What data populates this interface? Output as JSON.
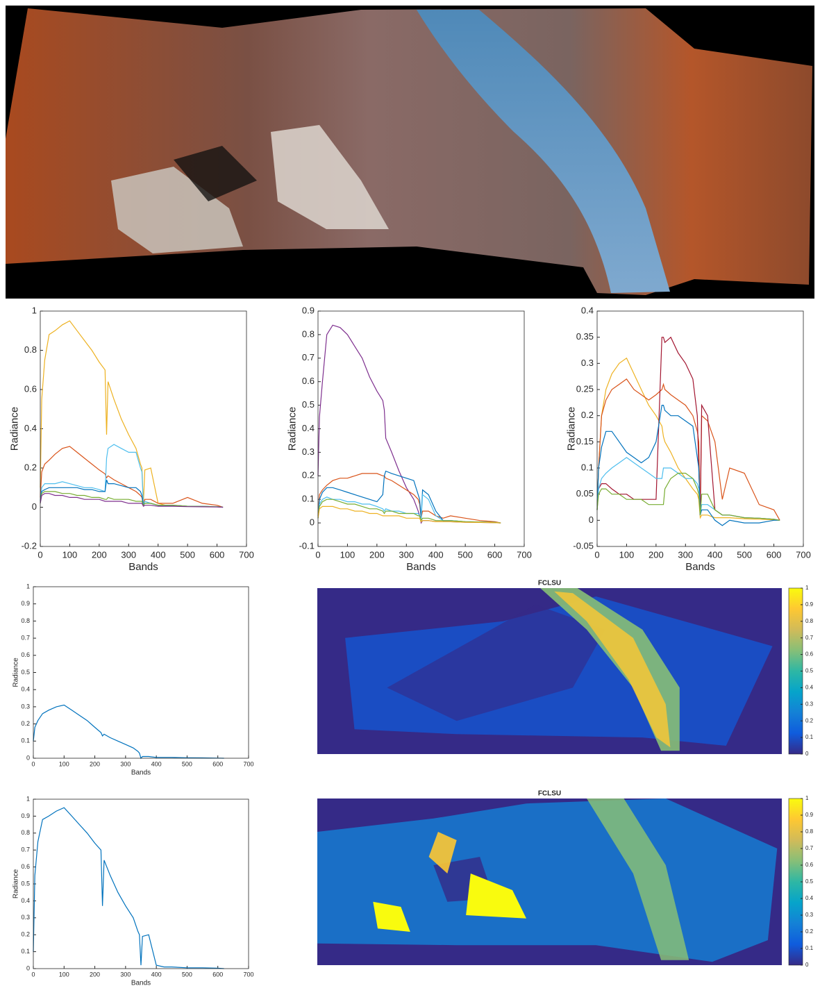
{
  "chart_data": [
    {
      "type": "line",
      "ylabel": "Radiance",
      "xlabel": "Bands",
      "xlim": [
        0,
        700
      ],
      "xticks": [
        0,
        100,
        200,
        300,
        400,
        500,
        600,
        700
      ],
      "ylim": [
        -0.2,
        1
      ],
      "yticks": [
        -0.2,
        0,
        0.2,
        0.4,
        0.6,
        0.8,
        1
      ],
      "x": [
        0,
        5,
        15,
        30,
        50,
        75,
        100,
        125,
        150,
        175,
        200,
        220,
        225,
        230,
        250,
        275,
        300,
        325,
        340,
        345,
        350,
        355,
        375,
        400,
        425,
        450,
        500,
        550,
        600,
        620
      ],
      "series": [
        {
          "color": "#EDB120",
          "values": [
            0.1,
            0.55,
            0.75,
            0.88,
            0.9,
            0.93,
            0.95,
            0.9,
            0.85,
            0.8,
            0.74,
            0.7,
            0.37,
            0.64,
            0.55,
            0.45,
            0.37,
            0.3,
            0.22,
            0.2,
            0.02,
            0.19,
            0.2,
            0.02,
            0.01,
            0.01,
            0.005,
            0.005,
            0.003,
            0
          ]
        },
        {
          "color": "#D95319",
          "values": [
            0.05,
            0.18,
            0.22,
            0.24,
            0.27,
            0.3,
            0.31,
            0.28,
            0.25,
            0.22,
            0.19,
            0.17,
            0.15,
            0.16,
            0.14,
            0.12,
            0.1,
            0.08,
            0.06,
            0.05,
            0.01,
            0.04,
            0.04,
            0.02,
            0.02,
            0.02,
            0.05,
            0.02,
            0.01,
            0
          ]
        },
        {
          "color": "#4DBEEE",
          "values": [
            0.03,
            0.1,
            0.12,
            0.12,
            0.12,
            0.13,
            0.12,
            0.11,
            0.1,
            0.1,
            0.09,
            0.08,
            0.25,
            0.3,
            0.32,
            0.3,
            0.28,
            0.28,
            0.2,
            0.18,
            0.01,
            0.03,
            0.02,
            0.01,
            0.01,
            0.01,
            0.005,
            0.005,
            0.003,
            0
          ]
        },
        {
          "color": "#0072BD",
          "values": [
            0.03,
            0.08,
            0.09,
            0.1,
            0.1,
            0.1,
            0.1,
            0.1,
            0.09,
            0.09,
            0.08,
            0.08,
            0.14,
            0.12,
            0.12,
            0.11,
            0.1,
            0.1,
            0.08,
            0.06,
            0.01,
            0.02,
            0.02,
            0.01,
            0.01,
            0.01,
            0.005,
            0.004,
            0.002,
            0
          ]
        },
        {
          "color": "#77AC30",
          "values": [
            0.02,
            0.07,
            0.08,
            0.08,
            0.08,
            0.07,
            0.07,
            0.06,
            0.06,
            0.05,
            0.05,
            0.04,
            0.04,
            0.05,
            0.04,
            0.04,
            0.04,
            0.03,
            0.03,
            0.03,
            0.01,
            0.02,
            0.02,
            0.01,
            0.01,
            0.01,
            0.005,
            0.004,
            0.002,
            0
          ]
        },
        {
          "color": "#7E2F8E",
          "values": [
            0.02,
            0.06,
            0.07,
            0.07,
            0.06,
            0.06,
            0.05,
            0.05,
            0.04,
            0.04,
            0.04,
            0.03,
            0.03,
            0.03,
            0.03,
            0.03,
            0.02,
            0.02,
            0.02,
            0.02,
            0.005,
            0.01,
            0.01,
            0.005,
            0.005,
            0.005,
            0.003,
            0.002,
            0.001,
            0
          ]
        }
      ]
    },
    {
      "type": "line",
      "ylabel": "Radiance",
      "xlabel": "Bands",
      "xlim": [
        0,
        700
      ],
      "xticks": [
        0,
        100,
        200,
        300,
        400,
        500,
        600,
        700
      ],
      "ylim": [
        -0.1,
        0.9
      ],
      "yticks": [
        -0.1,
        0,
        0.1,
        0.2,
        0.3,
        0.4,
        0.5,
        0.6,
        0.7,
        0.8,
        0.9
      ],
      "x": [
        0,
        5,
        15,
        30,
        50,
        75,
        100,
        125,
        150,
        175,
        200,
        220,
        225,
        230,
        250,
        275,
        300,
        325,
        340,
        345,
        350,
        355,
        375,
        400,
        425,
        450,
        500,
        550,
        600,
        620
      ],
      "series": [
        {
          "color": "#7E2F8E",
          "values": [
            0.2,
            0.45,
            0.6,
            0.8,
            0.84,
            0.83,
            0.8,
            0.75,
            0.7,
            0.62,
            0.56,
            0.52,
            0.48,
            0.36,
            0.3,
            0.22,
            0.15,
            0.1,
            0.05,
            0.03,
            0,
            0.01,
            0.01,
            0.005,
            0.005,
            0.005,
            0.003,
            0.002,
            0.001,
            0
          ]
        },
        {
          "color": "#D95319",
          "values": [
            0.03,
            0.12,
            0.14,
            0.16,
            0.18,
            0.19,
            0.19,
            0.2,
            0.21,
            0.21,
            0.21,
            0.2,
            0.2,
            0.19,
            0.18,
            0.16,
            0.14,
            0.12,
            0.1,
            0.08,
            0.02,
            0.05,
            0.05,
            0.03,
            0.02,
            0.03,
            0.02,
            0.01,
            0.005,
            0
          ]
        },
        {
          "color": "#0072BD",
          "values": [
            0.02,
            0.1,
            0.13,
            0.15,
            0.15,
            0.14,
            0.13,
            0.12,
            0.11,
            0.1,
            0.09,
            0.12,
            0.2,
            0.22,
            0.21,
            0.2,
            0.19,
            0.18,
            0.12,
            0.1,
            0.02,
            0.14,
            0.12,
            0.05,
            0.01,
            0.01,
            0.005,
            0.004,
            0.002,
            0
          ]
        },
        {
          "color": "#4DBEEE",
          "values": [
            0.02,
            0.08,
            0.1,
            0.11,
            0.1,
            0.1,
            0.09,
            0.09,
            0.08,
            0.08,
            0.07,
            0.06,
            0.05,
            0.06,
            0.05,
            0.05,
            0.04,
            0.04,
            0.04,
            0.03,
            0.01,
            0.12,
            0.1,
            0.03,
            0.01,
            0.01,
            0.005,
            0.004,
            0.002,
            0
          ]
        },
        {
          "color": "#77AC30",
          "values": [
            0.02,
            0.07,
            0.09,
            0.1,
            0.1,
            0.09,
            0.08,
            0.08,
            0.07,
            0.06,
            0.06,
            0.05,
            0.04,
            0.05,
            0.05,
            0.04,
            0.04,
            0.04,
            0.03,
            0.03,
            0.01,
            0.02,
            0.02,
            0.01,
            0.01,
            0.01,
            0.005,
            0.004,
            0.002,
            0
          ]
        },
        {
          "color": "#EDB120",
          "values": [
            0.02,
            0.06,
            0.07,
            0.07,
            0.07,
            0.06,
            0.06,
            0.05,
            0.05,
            0.04,
            0.04,
            0.03,
            0.03,
            0.03,
            0.03,
            0.03,
            0.02,
            0.02,
            0.02,
            0.02,
            0.005,
            0.01,
            0.01,
            0.005,
            0.005,
            0.005,
            0.003,
            0.002,
            0.001,
            0
          ]
        }
      ]
    },
    {
      "type": "line",
      "ylabel": "Radiance",
      "xlabel": "Bands",
      "xlim": [
        0,
        700
      ],
      "xticks": [
        0,
        100,
        200,
        300,
        400,
        500,
        600,
        700
      ],
      "ylim": [
        -0.05,
        0.4
      ],
      "yticks": [
        -0.05,
        0,
        0.05,
        0.1,
        0.15,
        0.2,
        0.25,
        0.3,
        0.35,
        0.4
      ],
      "x": [
        0,
        5,
        15,
        30,
        50,
        75,
        100,
        125,
        150,
        175,
        200,
        220,
        225,
        230,
        250,
        275,
        300,
        325,
        340,
        345,
        350,
        355,
        375,
        400,
        425,
        450,
        500,
        550,
        600,
        620
      ],
      "series": [
        {
          "color": "#EDB120",
          "values": [
            0.02,
            0.1,
            0.2,
            0.25,
            0.28,
            0.3,
            0.31,
            0.28,
            0.25,
            0.22,
            0.2,
            0.18,
            0.16,
            0.15,
            0.13,
            0.1,
            0.08,
            0.06,
            0.05,
            0.04,
            0.005,
            0.01,
            0.01,
            0.005,
            0.005,
            0.005,
            0.003,
            0.002,
            0.001,
            0
          ]
        },
        {
          "color": "#D95319",
          "values": [
            0.02,
            0.1,
            0.2,
            0.23,
            0.25,
            0.26,
            0.27,
            0.25,
            0.24,
            0.23,
            0.24,
            0.25,
            0.26,
            0.25,
            0.24,
            0.23,
            0.22,
            0.2,
            0.17,
            0.15,
            0.01,
            0.2,
            0.19,
            0.15,
            0.04,
            0.1,
            0.09,
            0.03,
            0.02,
            0
          ]
        },
        {
          "color": "#A2142F",
          "values": [
            0.02,
            0.06,
            0.07,
            0.07,
            0.06,
            0.05,
            0.05,
            0.04,
            0.04,
            0.04,
            0.04,
            0.35,
            0.35,
            0.34,
            0.35,
            0.32,
            0.3,
            0.27,
            0.2,
            0.1,
            0.01,
            0.22,
            0.2,
            0.02,
            0.01,
            0.01,
            0.005,
            0.004,
            0.002,
            0
          ]
        },
        {
          "color": "#0072BD",
          "values": [
            0.02,
            0.1,
            0.14,
            0.17,
            0.17,
            0.15,
            0.13,
            0.12,
            0.11,
            0.12,
            0.15,
            0.22,
            0.22,
            0.21,
            0.2,
            0.2,
            0.19,
            0.18,
            0.12,
            0.1,
            0.01,
            0.02,
            0.02,
            0,
            -0.01,
            0,
            -0.005,
            -0.005,
            0,
            0
          ]
        },
        {
          "color": "#4DBEEE",
          "values": [
            0.02,
            0.06,
            0.08,
            0.09,
            0.1,
            0.11,
            0.12,
            0.11,
            0.1,
            0.09,
            0.08,
            0.08,
            0.1,
            0.1,
            0.1,
            0.09,
            0.08,
            0.08,
            0.07,
            0.06,
            0.01,
            0.03,
            0.03,
            0.02,
            0.01,
            0.01,
            0.005,
            0.004,
            0.002,
            0
          ]
        },
        {
          "color": "#77AC30",
          "values": [
            0.02,
            0.05,
            0.06,
            0.06,
            0.05,
            0.05,
            0.04,
            0.04,
            0.04,
            0.03,
            0.03,
            0.03,
            0.03,
            0.06,
            0.08,
            0.09,
            0.09,
            0.08,
            0.06,
            0.05,
            0.01,
            0.05,
            0.05,
            0.02,
            0.01,
            0.01,
            0.005,
            0.004,
            0.002,
            0
          ]
        }
      ]
    },
    {
      "type": "line",
      "ylabel": "Radiance",
      "xlabel": "Bands",
      "xlim": [
        0,
        700
      ],
      "xticks": [
        0,
        100,
        200,
        300,
        400,
        500,
        600,
        700
      ],
      "ylim": [
        0,
        1
      ],
      "yticks": [
        0,
        0.1,
        0.2,
        0.3,
        0.4,
        0.5,
        0.6,
        0.7,
        0.8,
        0.9,
        1
      ],
      "x": [
        0,
        5,
        15,
        30,
        50,
        75,
        100,
        125,
        150,
        175,
        200,
        220,
        225,
        230,
        250,
        275,
        300,
        325,
        340,
        345,
        350,
        355,
        375,
        400,
        425,
        450,
        500,
        550,
        600,
        620
      ],
      "series": [
        {
          "color": "#0072BD",
          "values": [
            0.1,
            0.18,
            0.22,
            0.26,
            0.28,
            0.3,
            0.31,
            0.28,
            0.25,
            0.22,
            0.18,
            0.15,
            0.13,
            0.14,
            0.12,
            0.1,
            0.08,
            0.06,
            0.04,
            0.03,
            0,
            0.01,
            0.01,
            0.005,
            0.005,
            0.005,
            0.003,
            0.002,
            0.001,
            0
          ]
        }
      ]
    },
    {
      "type": "image",
      "title": "FCLSU",
      "colormap": [
        "#352A87",
        "#0F5CDD",
        "#1481D6",
        "#06A4CA",
        "#2EB7A4",
        "#87BF77",
        "#D1BB59",
        "#FEC832",
        "#F9FB0E"
      ],
      "clim": [
        0,
        1
      ],
      "cticks": [
        0,
        0.1,
        0.2,
        0.3,
        0.4,
        0.5,
        0.6,
        0.7,
        0.8,
        0.9,
        1
      ],
      "variant": "glacier"
    },
    {
      "type": "line",
      "ylabel": "Radiance",
      "xlabel": "Bands",
      "xlim": [
        0,
        700
      ],
      "xticks": [
        0,
        100,
        200,
        300,
        400,
        500,
        600,
        700
      ],
      "ylim": [
        0,
        1
      ],
      "yticks": [
        0,
        0.1,
        0.2,
        0.3,
        0.4,
        0.5,
        0.6,
        0.7,
        0.8,
        0.9,
        1
      ],
      "x": [
        0,
        5,
        15,
        30,
        50,
        75,
        100,
        125,
        150,
        175,
        200,
        220,
        225,
        230,
        250,
        275,
        300,
        325,
        340,
        345,
        350,
        355,
        375,
        400,
        425,
        450,
        500,
        550,
        600,
        620
      ],
      "series": [
        {
          "color": "#0072BD",
          "values": [
            0.1,
            0.55,
            0.75,
            0.88,
            0.9,
            0.93,
            0.95,
            0.9,
            0.85,
            0.8,
            0.74,
            0.7,
            0.37,
            0.64,
            0.55,
            0.45,
            0.37,
            0.3,
            0.22,
            0.2,
            0.02,
            0.19,
            0.2,
            0.02,
            0.01,
            0.01,
            0.005,
            0.005,
            0.003,
            0
          ]
        }
      ]
    },
    {
      "type": "image",
      "title": "FCLSU",
      "colormap": [
        "#352A87",
        "#0F5CDD",
        "#1481D6",
        "#06A4CA",
        "#2EB7A4",
        "#87BF77",
        "#D1BB59",
        "#FEC832",
        "#F9FB0E"
      ],
      "clim": [
        0,
        1
      ],
      "cticks": [
        0,
        0.1,
        0.2,
        0.3,
        0.4,
        0.5,
        0.6,
        0.7,
        0.8,
        0.9,
        1
      ],
      "variant": "snow"
    }
  ]
}
